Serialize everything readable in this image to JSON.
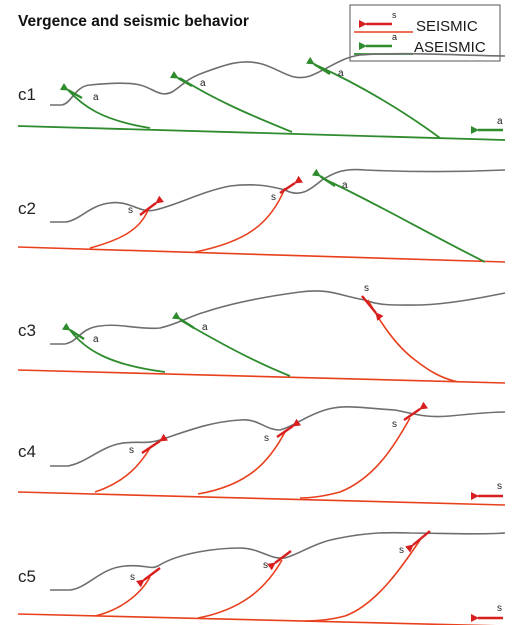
{
  "title": "Vergence and seismic behavior",
  "legend": {
    "seismic": {
      "label": "SEISMIC",
      "letter": "s",
      "color": "#e8401c"
    },
    "aseismic": {
      "label": "ASEISMIC",
      "letter": "a",
      "color": "#2e8b2e"
    }
  },
  "topography_color": "#6e6e6e",
  "panels": [
    {
      "label": "c1",
      "décollement": "aseismic",
      "faults": [
        "aseismic",
        "aseismic",
        "aseismic"
      ],
      "basal_arrow": "a"
    },
    {
      "label": "c2",
      "décollement": "seismic",
      "faults": [
        "seismic",
        "seismic",
        "aseismic"
      ],
      "basal_arrow": ""
    },
    {
      "label": "c3",
      "décollement": "seismic",
      "faults": [
        "aseismic",
        "aseismic",
        "seismic"
      ],
      "basal_arrow": ""
    },
    {
      "label": "c4",
      "décollement": "seismic",
      "faults": [
        "seismic",
        "seismic",
        "seismic"
      ],
      "basal_arrow": "s"
    },
    {
      "label": "c5",
      "décollement": "seismic",
      "faults": [
        "seismic",
        "seismic",
        "seismic"
      ],
      "basal_arrow": "s"
    }
  ]
}
